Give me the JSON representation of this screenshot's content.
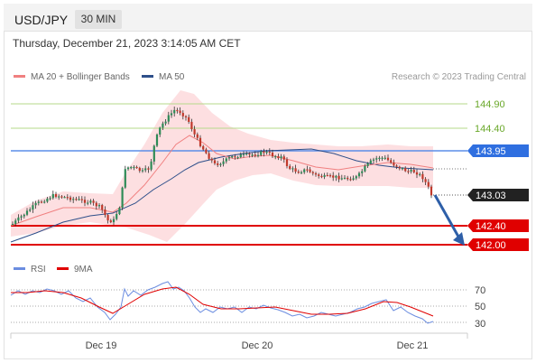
{
  "header": {
    "symbol": "USD/JPY",
    "timeframe": "30 MIN"
  },
  "datetime": "Thursday, December 21, 2023 3:14:05 AM CET",
  "legend": {
    "ma20_label": "MA 20 + Bollinger Bands",
    "ma50_label": "MA 50",
    "credit": "Research © 2023 Trading Central",
    "rsi_label": "RSI",
    "rsi9_label": "9MA"
  },
  "colors": {
    "ma20": "#f08080",
    "ma50": "#2e4f8a",
    "band": "#fdd9dc",
    "up": "#2e8b57",
    "down": "#c0392b",
    "resistance": "#9acd32",
    "pivot": "#2f6fe0",
    "support": "#e00000",
    "rsi": "#6b8de0",
    "rsi_ma": "#e00000"
  },
  "levels": [
    {
      "price": "144.90",
      "type": "resistance"
    },
    {
      "price": "144.40",
      "type": "resistance"
    },
    {
      "price": "143.95",
      "type": "pivot"
    },
    {
      "price": "143.03",
      "type": "current"
    },
    {
      "price": "142.40",
      "type": "support"
    },
    {
      "price": "142.00",
      "type": "support"
    }
  ],
  "rsi_levels": [
    "70",
    "50",
    "30"
  ],
  "x_labels": [
    "Dec 19",
    "Dec 20",
    "Dec 21"
  ]
}
